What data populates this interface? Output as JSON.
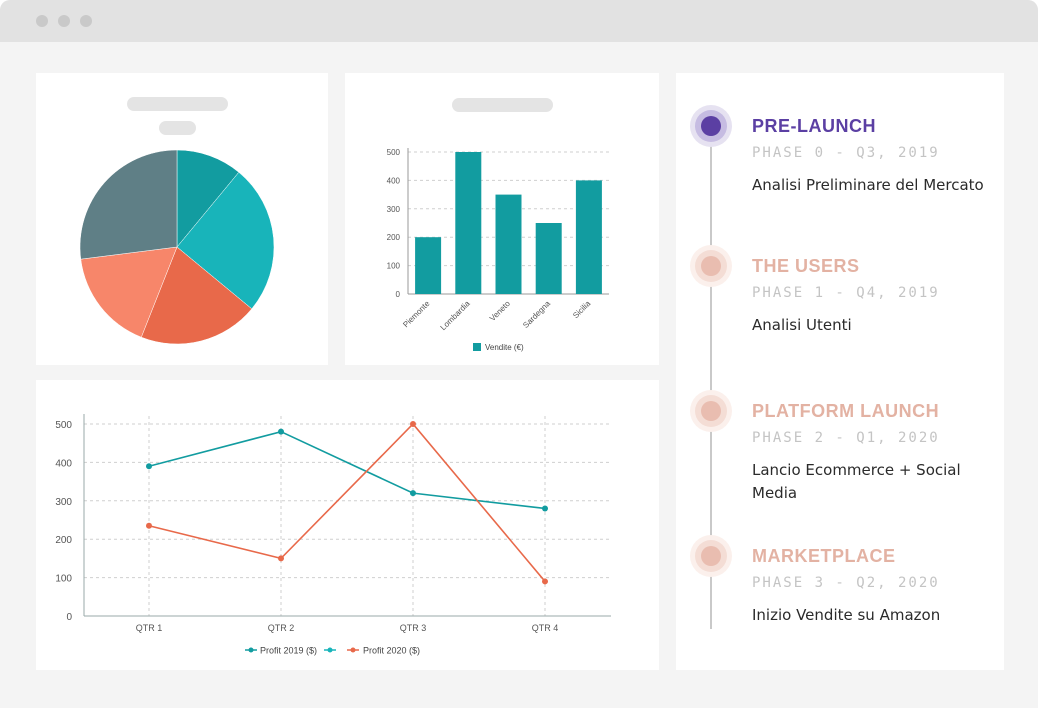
{
  "colors": {
    "teal": "#129ca0",
    "teal_light": "#18b4ba",
    "slate": "#5f7f86",
    "orange": "#e8694a",
    "salmon": "#f7866a",
    "purple": "#5b3fa3",
    "peach": "#e3b2a3"
  },
  "pie_chart": {
    "chart_data": {
      "type": "pie",
      "slices": [
        {
          "value": 11,
          "color": "#129ca0"
        },
        {
          "value": 25,
          "color": "#18b4ba"
        },
        {
          "value": 20,
          "color": "#e8694a"
        },
        {
          "value": 17,
          "color": "#f7866a"
        },
        {
          "value": 27,
          "color": "#5f7f86"
        }
      ]
    }
  },
  "bar_chart": {
    "chart_data": {
      "type": "bar",
      "categories": [
        "Piemonte",
        "Lombardia",
        "Veneto",
        "Sardegna",
        "Sicilia"
      ],
      "series": [
        {
          "name": "Vendite (€)",
          "values": [
            200,
            500,
            350,
            250,
            400
          ]
        }
      ],
      "ylim": [
        0,
        500
      ],
      "yticks": [
        "0",
        "100",
        "200",
        "300",
        "400",
        "500"
      ],
      "grid": true,
      "legend": "bottom"
    }
  },
  "line_chart": {
    "chart_data": {
      "type": "line",
      "categories": [
        "QTR 1",
        "QTR 2",
        "QTR 3",
        "QTR 4"
      ],
      "series": [
        {
          "name": "Profit 2019 ($)",
          "values": [
            390,
            480,
            320,
            280
          ],
          "color": "#129ca0"
        },
        {
          "name": "Profit 2020 ($)",
          "values": [
            235,
            150,
            500,
            90
          ],
          "color": "#e8694a"
        }
      ],
      "ylim": [
        0,
        500
      ],
      "yticks": [
        "0",
        "100",
        "200",
        "300",
        "400",
        "500"
      ],
      "grid": true,
      "legend": "bottom"
    }
  },
  "timeline": {
    "items": [
      {
        "title": "PRE-LAUNCH",
        "phase": "PHASE 0 - Q3, 2019",
        "desc": "Analisi Preliminare del Mercato",
        "active": true
      },
      {
        "title": "THE USERS",
        "phase": "PHASE 1 - Q4, 2019",
        "desc": "Analisi Utenti",
        "active": false
      },
      {
        "title": "PLATFORM LAUNCH",
        "phase": "PHASE 2 - Q1, 2020",
        "desc": "Lancio Ecommerce + Social Media",
        "active": false
      },
      {
        "title": "MARKETPLACE",
        "phase": "PHASE 3 - Q2, 2020",
        "desc": "Inizio Vendite su Amazon",
        "active": false
      }
    ]
  }
}
